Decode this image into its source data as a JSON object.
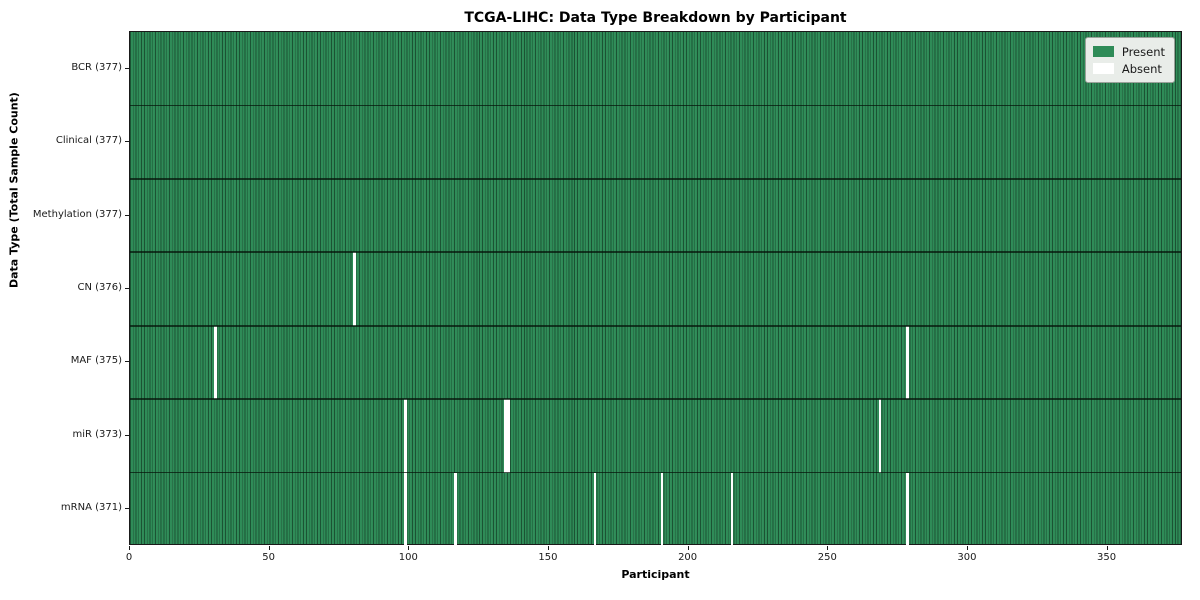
{
  "chart_data": {
    "type": "heatmap",
    "title": "TCGA-LIHC: Data Type Breakdown by Participant",
    "xlabel": "Participant",
    "ylabel": "Data Type (Total Sample Count)",
    "x_range": [
      0,
      377
    ],
    "n_participants": 377,
    "x_ticks": [
      0,
      50,
      100,
      150,
      200,
      250,
      300,
      350
    ],
    "grid": false,
    "legend_position": "upper right",
    "rows": [
      {
        "label": "BCR (377)",
        "data_type": "BCR",
        "total": 377,
        "absent_participants": []
      },
      {
        "label": "Clinical (377)",
        "data_type": "Clinical",
        "total": 377,
        "absent_participants": []
      },
      {
        "label": "Methylation (377)",
        "data_type": "Methylation",
        "total": 377,
        "absent_participants": []
      },
      {
        "label": "CN (376)",
        "data_type": "CN",
        "total": 376,
        "absent_participants": [
          80
        ]
      },
      {
        "label": "MAF (375)",
        "data_type": "MAF",
        "total": 375,
        "absent_participants": [
          30,
          278
        ]
      },
      {
        "label": "miR (373)",
        "data_type": "miR",
        "total": 373,
        "absent_participants": [
          98,
          134,
          135,
          268
        ]
      },
      {
        "label": "mRNA (371)",
        "data_type": "mRNA",
        "total": 371,
        "absent_participants": [
          98,
          116,
          166,
          190,
          215,
          278
        ]
      }
    ],
    "legend": [
      {
        "label": "Present",
        "color": "#2e8b57"
      },
      {
        "label": "Absent",
        "color": "#ffffff"
      }
    ],
    "colors": {
      "present": "#2e8b57",
      "absent": "#ffffff",
      "figure_background": "#ffffff"
    }
  }
}
